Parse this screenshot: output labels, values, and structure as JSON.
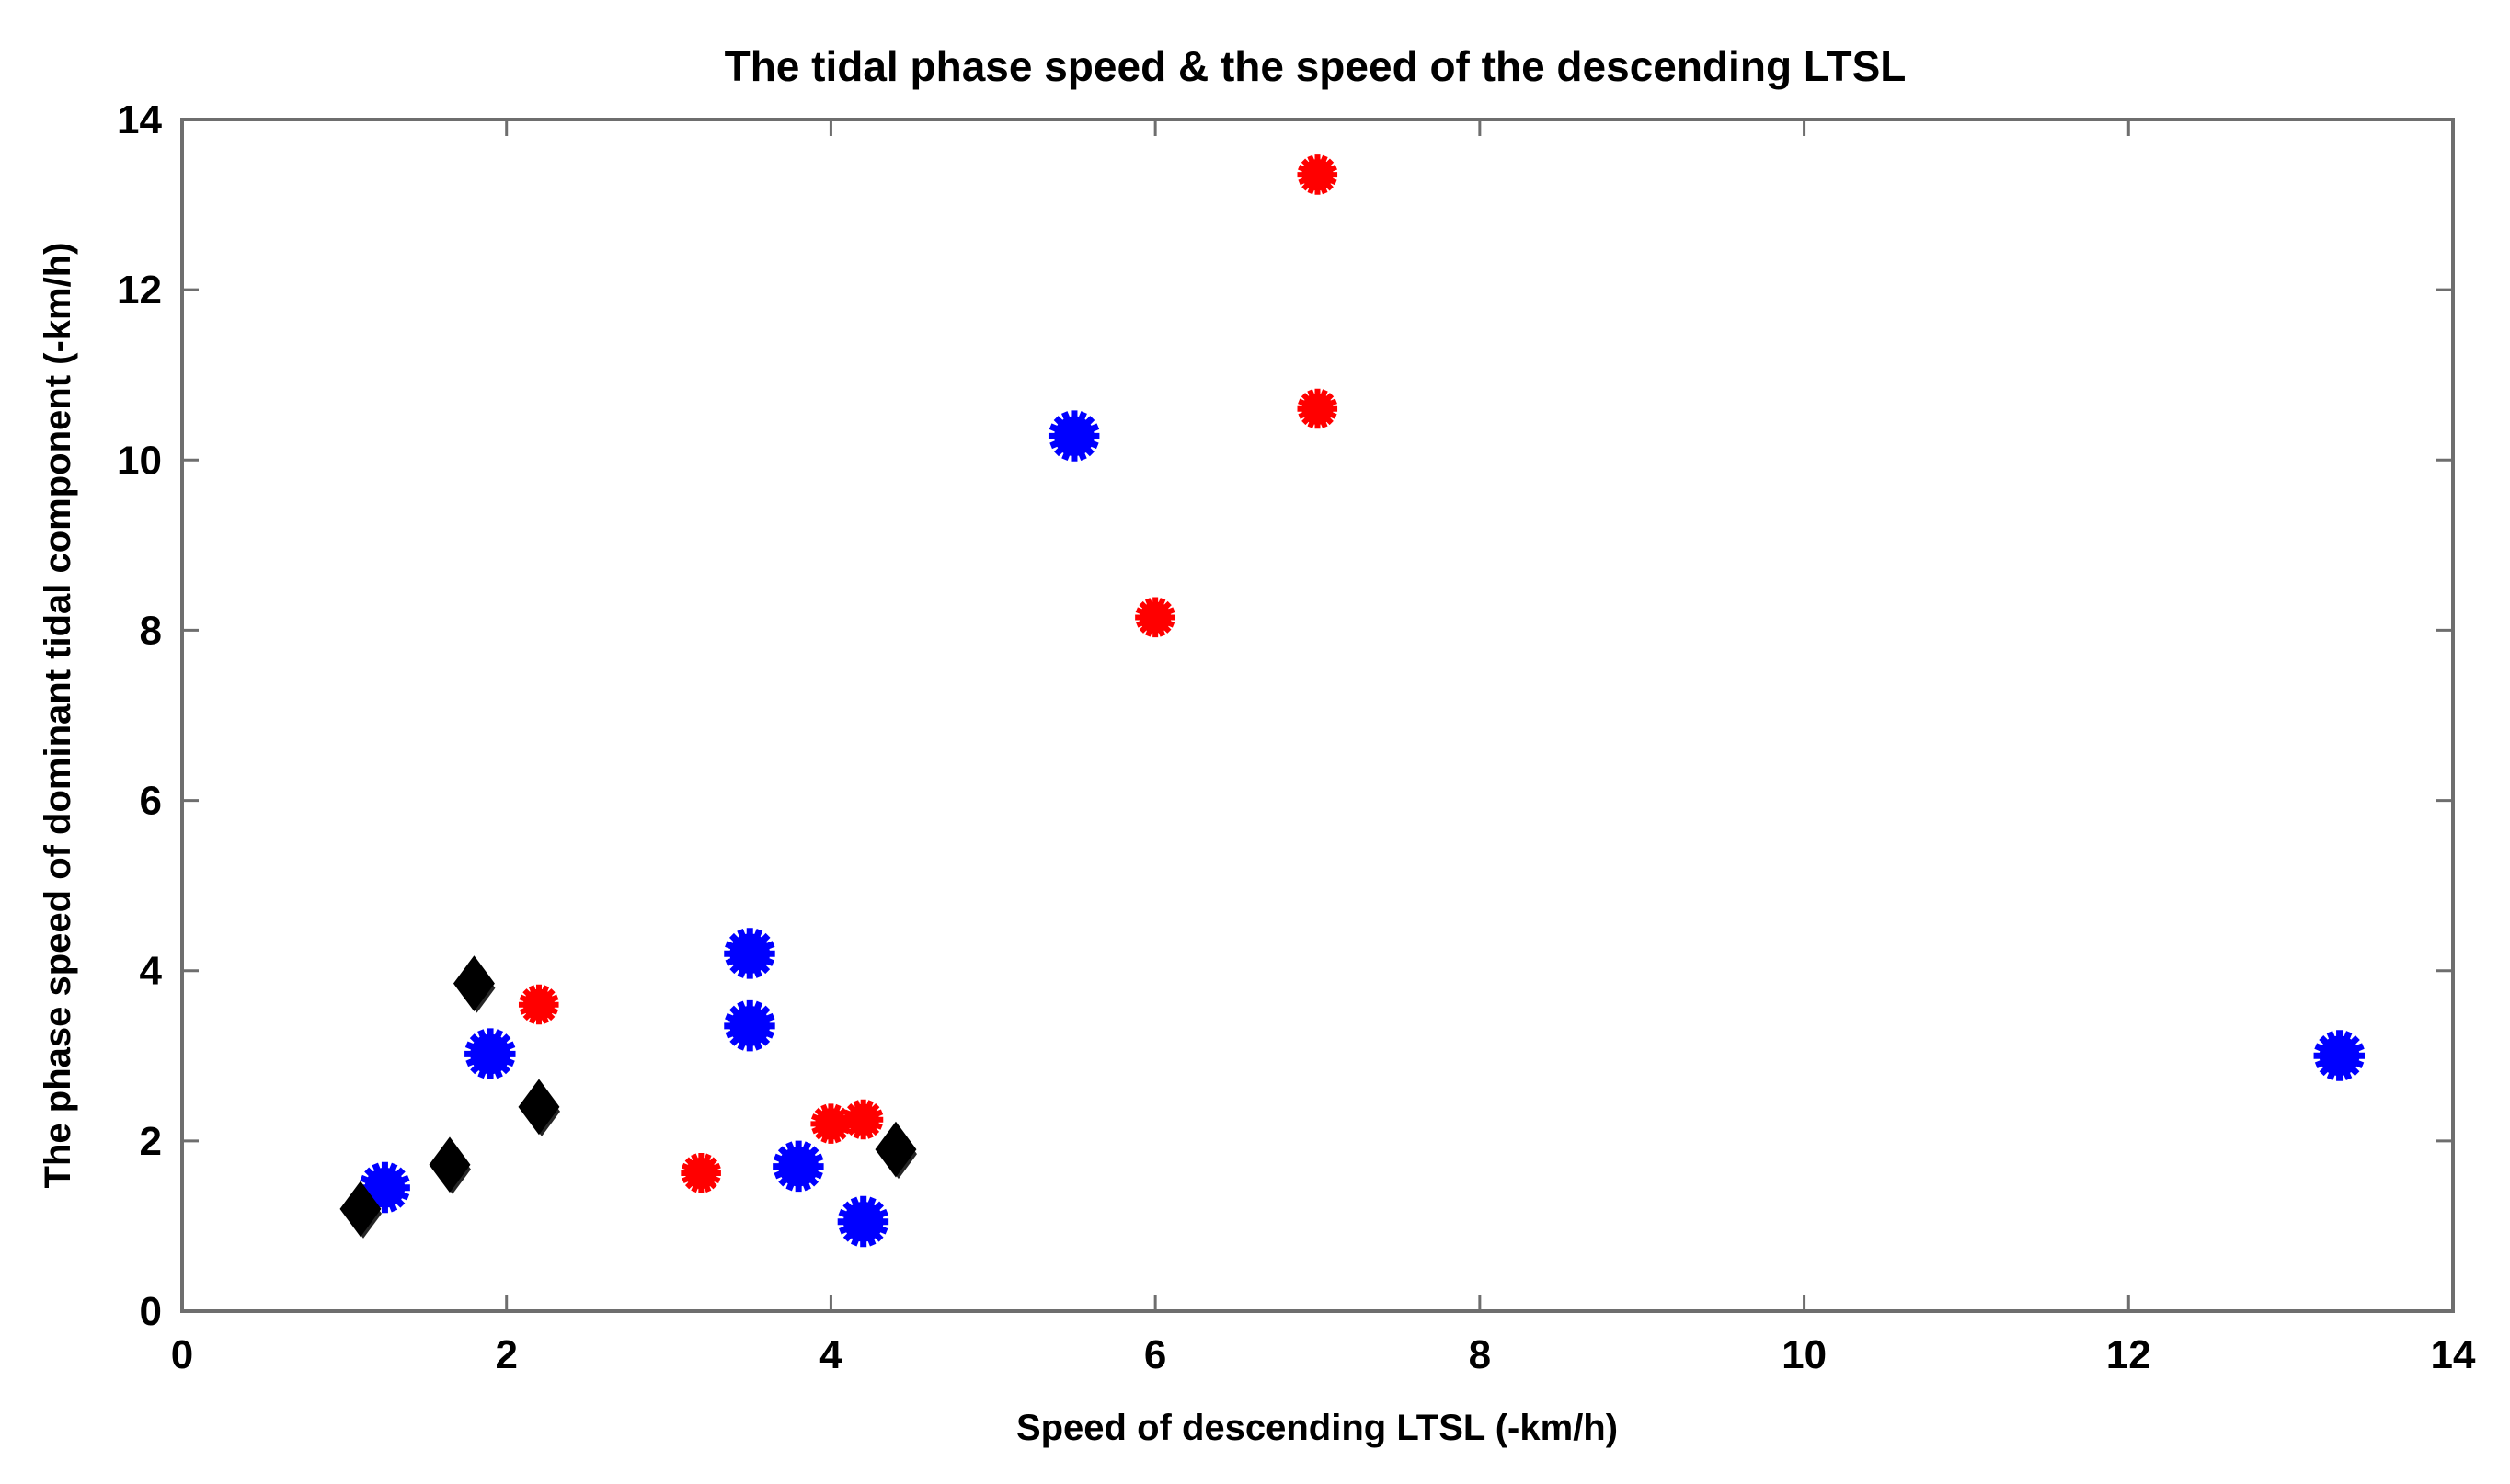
{
  "chart_data": {
    "type": "scatter",
    "title": "The tidal phase speed & the speed of the descending LTSL",
    "xlabel": "Speed of descending LTSL (-km/h)",
    "ylabel": "The  phase speed of dominant tidal component  (-km/h)",
    "xlim": [
      0,
      14
    ],
    "ylim": [
      0,
      14
    ],
    "xticks": [
      "0",
      "2",
      "4",
      "6",
      "8",
      "10",
      "12",
      "14"
    ],
    "yticks": [
      "0",
      "2",
      "4",
      "6",
      "8",
      "10",
      "12",
      "14"
    ],
    "grid": false,
    "legend": "none",
    "series": [
      {
        "name": "red",
        "color": "#ff0000",
        "marker": "asterisk-small",
        "points": [
          [
            7.0,
            13.35
          ],
          [
            7.0,
            10.6
          ],
          [
            6.0,
            8.15
          ],
          [
            2.2,
            3.6
          ],
          [
            3.2,
            1.62
          ],
          [
            4.0,
            2.2
          ],
          [
            4.2,
            2.25
          ]
        ]
      },
      {
        "name": "blue",
        "color": "#0000ff",
        "marker": "asterisk-large",
        "points": [
          [
            5.5,
            10.28
          ],
          [
            3.5,
            4.2
          ],
          [
            3.5,
            3.35
          ],
          [
            1.9,
            3.02
          ],
          [
            1.25,
            1.45
          ],
          [
            3.8,
            1.7
          ],
          [
            4.2,
            1.05
          ],
          [
            13.3,
            3.0
          ]
        ]
      },
      {
        "name": "black",
        "color": "#000000",
        "marker": "diamond",
        "points": [
          [
            1.1,
            1.2
          ],
          [
            1.65,
            1.72
          ],
          [
            1.8,
            3.85
          ],
          [
            2.2,
            2.4
          ],
          [
            4.4,
            1.9
          ]
        ]
      }
    ]
  }
}
